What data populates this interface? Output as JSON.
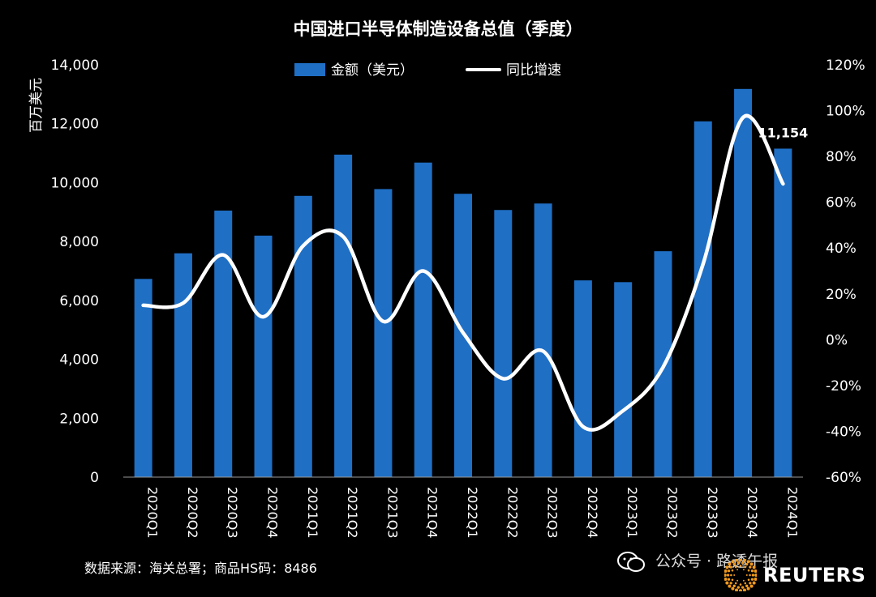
{
  "chart_data": {
    "type": "bar",
    "title": "中国进口半导体制造设备总值（季度）",
    "ylabel": "百万美元",
    "ylim": [
      0,
      14000
    ],
    "y_ticks": [
      "0",
      "2,000",
      "4,000",
      "6,000",
      "8,000",
      "10,000",
      "12,000",
      "14,000"
    ],
    "y2lim": [
      -60,
      120
    ],
    "y2_ticks": [
      "-60%",
      "-40%",
      "-20%",
      "0%",
      "20%",
      "40%",
      "60%",
      "80%",
      "100%",
      "120%"
    ],
    "categories": [
      "2020Q1",
      "2020Q2",
      "2020Q3",
      "2020Q4",
      "2021Q1",
      "2021Q2",
      "2021Q3",
      "2021Q4",
      "2022Q1",
      "2022Q2",
      "2022Q3",
      "2022Q4",
      "2023Q1",
      "2023Q2",
      "2023Q3",
      "2023Q4",
      "2024Q1"
    ],
    "legend_position": "top-center",
    "series": [
      {
        "name": "金额（美元）",
        "type": "bar",
        "axis": "left",
        "color": "#1f6fc5",
        "values": [
          6730,
          7600,
          9050,
          8200,
          9550,
          10950,
          9780,
          10680,
          9620,
          9070,
          9290,
          6680,
          6620,
          7670,
          12080,
          13180,
          11154
        ]
      },
      {
        "name": "同比增速",
        "type": "line",
        "axis": "right",
        "color": "#ffffff",
        "values": [
          15,
          16,
          37,
          10,
          41,
          45,
          8,
          30,
          3,
          -17,
          -5,
          -38,
          -31,
          -12,
          33,
          97,
          68
        ]
      }
    ],
    "annotations": [
      {
        "category": "2024Q1",
        "text": "11,154"
      }
    ]
  },
  "footer": {
    "source": "数据来源：海关总署；商品HS码：8486",
    "wechat_text": "公众号 · 路透午报",
    "brand": "REUTERS"
  }
}
